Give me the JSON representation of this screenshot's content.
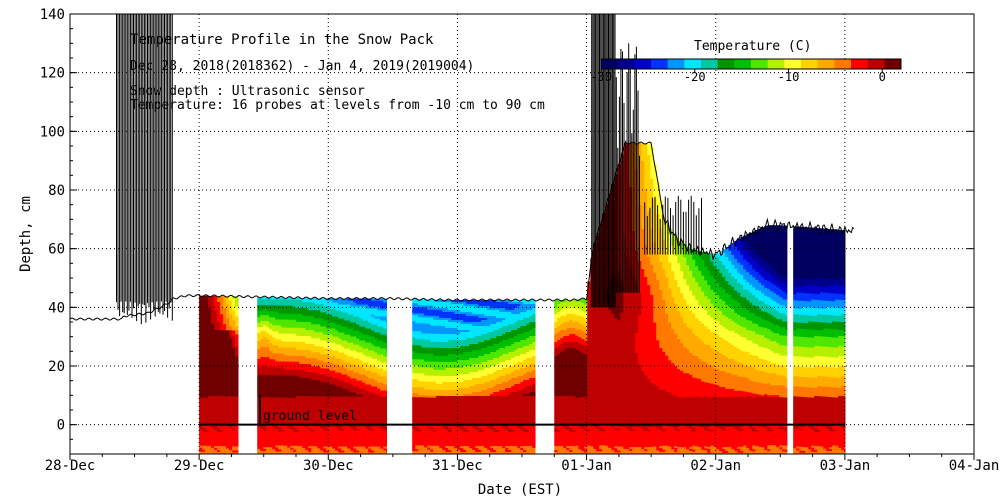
{
  "chart_data": {
    "type": "heatmap",
    "title": "Temperature Profile in the Snow Pack",
    "subtitle": "Dec 28, 2018(2018362) - Jan  4, 2019(2019004)",
    "annotations": [
      "Snow depth : Ultrasonic sensor",
      "Temperature: 16 probes at levels from -10 cm to 90 cm"
    ],
    "xlabel": "Date (EST)",
    "ylabel": "Depth, cm",
    "x_tick_labels": [
      "28-Dec",
      "29-Dec",
      "30-Dec",
      "31-Dec",
      "01-Jan",
      "02-Jan",
      "03-Jan",
      "04-Jan"
    ],
    "xlim_days": [
      0,
      7
    ],
    "ylim": [
      -10,
      140
    ],
    "y_ticks": [
      0,
      20,
      40,
      60,
      80,
      100,
      120,
      140
    ],
    "grid": true,
    "ground_level_label": "ground level",
    "legend": {
      "title": "Temperature (C)",
      "tick_labels": [
        "-30",
        "-20",
        "-10",
        "0"
      ],
      "range": [
        -30,
        2
      ],
      "colors": [
        "#000060",
        "#00008c",
        "#0000c8",
        "#0032ff",
        "#0096ff",
        "#00e6ff",
        "#00c8a0",
        "#009600",
        "#00be00",
        "#50e600",
        "#b4f000",
        "#ffff32",
        "#ffd200",
        "#ffaa00",
        "#ff7800",
        "#ff0000",
        "#be0000",
        "#6e0000"
      ]
    },
    "temperature_data_segments": [
      {
        "start_day": 1.0,
        "end_day": 1.3
      },
      {
        "start_day": 1.45,
        "end_day": 2.45
      },
      {
        "start_day": 2.65,
        "end_day": 3.6
      },
      {
        "start_day": 3.75,
        "end_day": 5.55
      },
      {
        "start_day": 5.6,
        "end_day": 6.0
      }
    ],
    "snow_depth_series": {
      "day": [
        0,
        0.4,
        0.42,
        0.6,
        0.7,
        0.78,
        0.8,
        0.9,
        1.0,
        1.5,
        2.0,
        2.5,
        2.9,
        3.0,
        3.5,
        3.9,
        4.0,
        4.05,
        4.3,
        4.5,
        4.6,
        4.7,
        4.8,
        5.0,
        5.2,
        5.4,
        5.5,
        5.8,
        6.07
      ],
      "depth_cm": [
        36,
        36,
        37,
        38,
        40,
        42,
        43,
        44,
        44,
        43.5,
        43,
        43,
        42.5,
        42.5,
        42.5,
        42.5,
        43,
        60,
        96,
        96,
        70,
        63,
        60,
        58,
        64,
        68,
        68,
        67,
        66
      ]
    }
  }
}
